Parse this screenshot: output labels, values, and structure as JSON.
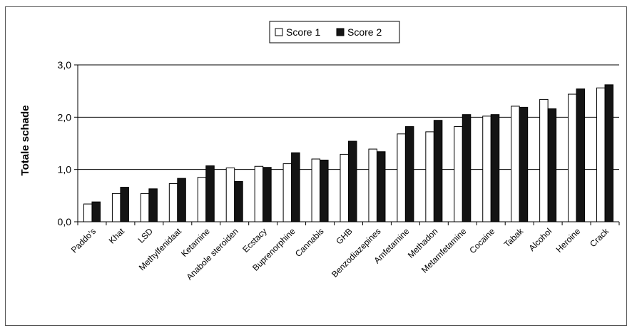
{
  "chart_data": {
    "type": "bar",
    "ylabel": "Totale schade",
    "ylim": [
      0,
      3
    ],
    "yticks": [
      "0,0",
      "1,0",
      "2,0",
      "3,0"
    ],
    "ytick_values": [
      0,
      1,
      2,
      3
    ],
    "grid": "horizontal major lines",
    "legend_position": "top-center",
    "categories": [
      "Paddo's",
      "Khat",
      "LSD",
      "Methylfenidaat",
      "Ketamine",
      "Anabole steroiden",
      "Ecstacy",
      "Buprenorphine",
      "Cannabis",
      "GHB",
      "Benzodiazepines",
      "Amfetamine",
      "Methadon",
      "Metamfetamine",
      "Cocaine",
      "Tabak",
      "Alcohol",
      "Heroine",
      "Crack"
    ],
    "series": [
      {
        "name": "Score 1",
        "color": "#ffffff",
        "values": [
          0.34,
          0.54,
          0.54,
          0.73,
          0.85,
          1.03,
          1.06,
          1.11,
          1.2,
          1.29,
          1.39,
          1.68,
          1.72,
          1.82,
          2.02,
          2.21,
          2.34,
          2.44,
          2.56
        ]
      },
      {
        "name": "Score 2",
        "color": "#141414",
        "values": [
          0.38,
          0.66,
          0.63,
          0.83,
          1.07,
          0.77,
          1.04,
          1.32,
          1.18,
          1.54,
          1.34,
          1.82,
          1.94,
          2.05,
          2.05,
          2.19,
          2.16,
          2.54,
          2.62
        ]
      }
    ]
  }
}
